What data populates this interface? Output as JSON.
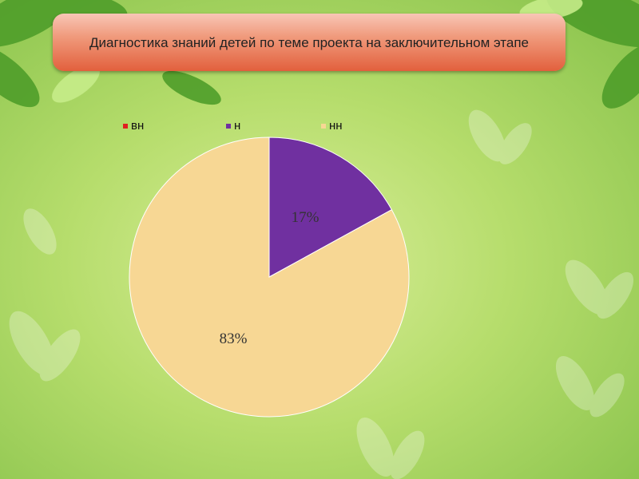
{
  "title": "Диагностика знаний детей по теме проекта на заключительном этапе",
  "colors": {
    "вн": "#e02020",
    "н": "#7030a0",
    "нн": "#f7d794"
  },
  "chart_data": {
    "type": "pie",
    "categories": [
      "вн",
      "н",
      "нн"
    ],
    "values": [
      0,
      17,
      83
    ],
    "data_labels": [
      "",
      "17%",
      "83%"
    ],
    "legend_position": "top",
    "start_angle": "12 o'clock",
    "direction": "clockwise"
  },
  "legend": [
    {
      "label": "вн"
    },
    {
      "label": "н"
    },
    {
      "label": "нн"
    }
  ]
}
